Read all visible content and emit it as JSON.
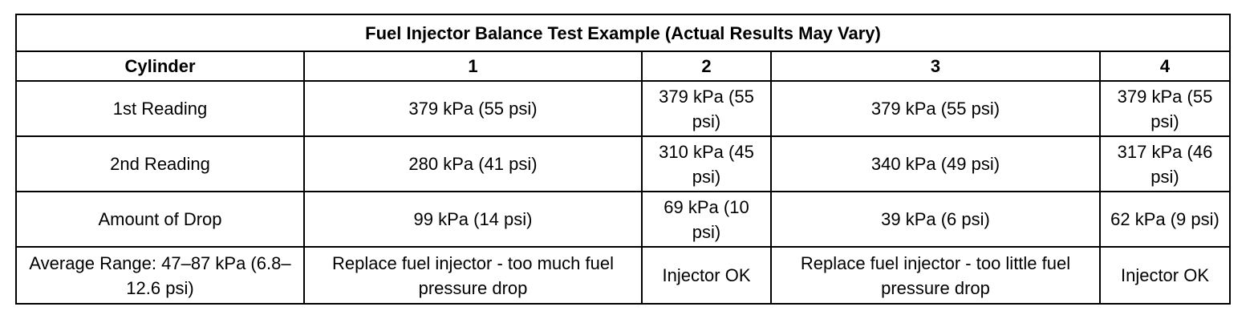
{
  "table": {
    "title": "Fuel Injector Balance Test Example (Actual Results May Vary)",
    "headers": [
      "Cylinder",
      "1",
      "2",
      "3",
      "4"
    ],
    "rows": [
      [
        "1st Reading",
        "379 kPa (55 psi)",
        "379 kPa (55 psi)",
        "379 kPa (55 psi)",
        "379 kPa (55 psi)"
      ],
      [
        "2nd Reading",
        "280 kPa (41 psi)",
        "310 kPa (45 psi)",
        "340 kPa (49 psi)",
        "317 kPa (46 psi)"
      ],
      [
        "Amount of Drop",
        "99 kPa (14 psi)",
        "69 kPa (10 psi)",
        "39 kPa (6 psi)",
        "62 kPa (9 psi)"
      ],
      [
        "Average Range: 47–87 kPa (6.8–12.6 psi)",
        "Replace fuel injector - too much fuel pressure drop",
        "Injector OK",
        "Replace fuel injector - too little fuel pressure drop",
        "Injector OK"
      ]
    ]
  }
}
